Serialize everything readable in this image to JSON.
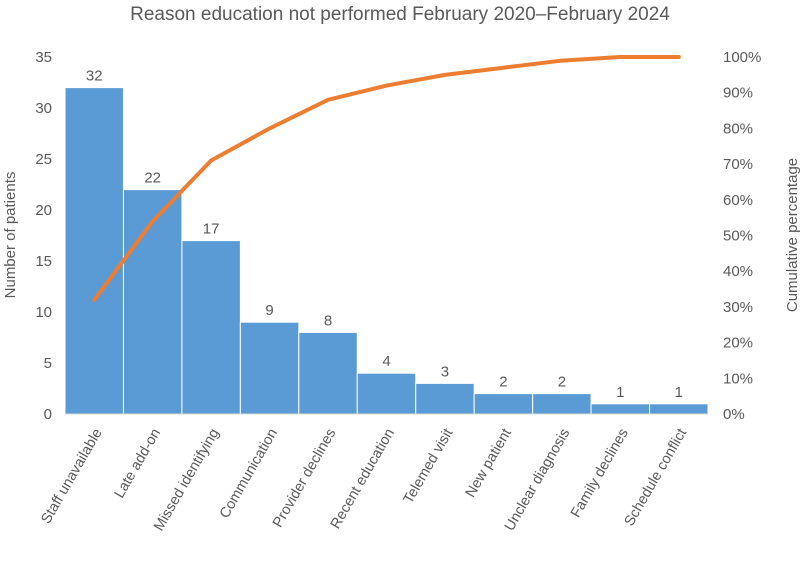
{
  "chart_data": {
    "type": "bar",
    "title": "Reason education not performed February 2020–February 2024",
    "xlabel": "",
    "ylabel": "Number of patients",
    "y2label": "Cumulative percentage",
    "categories": [
      "Staff unavailable",
      "Late add-on",
      "Missed identifying",
      "Communication",
      "Provider declines",
      "Recent education",
      "Telemed visit",
      "New patient",
      "Unclear diagnosis",
      "Family declines",
      "Schedule conflict"
    ],
    "values": [
      32,
      22,
      17,
      9,
      8,
      4,
      3,
      2,
      2,
      1,
      1
    ],
    "data_labels": [
      "32",
      "22",
      "17",
      "9",
      "8",
      "4",
      "3",
      "2",
      "2",
      "1",
      "1"
    ],
    "cumulative_percentage": [
      32,
      54,
      71,
      80,
      88,
      92,
      95,
      97,
      99,
      100,
      100
    ],
    "ylim": [
      0,
      35
    ],
    "yticks": [
      "0",
      "5",
      "10",
      "15",
      "20",
      "25",
      "30",
      "35"
    ],
    "y2lim": [
      0,
      100
    ],
    "y2ticks": [
      "0%",
      "10%",
      "20%",
      "30%",
      "40%",
      "50%",
      "60%",
      "70%",
      "80%",
      "90%",
      "100%"
    ],
    "grid": false,
    "legend": "none",
    "colors": {
      "bars": "#5b9bd5",
      "line": "#ed7d31",
      "text": "#595959",
      "axis": "#d9d9d9"
    }
  }
}
